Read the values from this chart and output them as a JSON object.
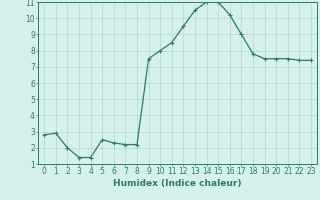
{
  "x": [
    0,
    1,
    2,
    3,
    4,
    5,
    6,
    7,
    8,
    9,
    10,
    11,
    12,
    13,
    14,
    15,
    16,
    17,
    18,
    19,
    20,
    21,
    22,
    23
  ],
  "y": [
    2.8,
    2.9,
    2.0,
    1.4,
    1.4,
    2.5,
    2.3,
    2.2,
    2.2,
    7.5,
    8.0,
    8.5,
    9.5,
    10.5,
    11.0,
    11.0,
    10.2,
    9.0,
    7.8,
    7.5,
    7.5,
    7.5,
    7.4,
    7.4
  ],
  "line_color": "#2d7a6e",
  "marker": "+",
  "bg_color": "#d6f0ee",
  "grid_color": "#b0d8d4",
  "xlabel": "Humidex (Indice chaleur)",
  "xlim": [
    -0.5,
    23.5
  ],
  "ylim": [
    1,
    11
  ],
  "yticks": [
    1,
    2,
    3,
    4,
    5,
    6,
    7,
    8,
    9,
    10,
    11
  ],
  "xticks": [
    0,
    1,
    2,
    3,
    4,
    5,
    6,
    7,
    8,
    9,
    10,
    11,
    12,
    13,
    14,
    15,
    16,
    17,
    18,
    19,
    20,
    21,
    22,
    23
  ],
  "tick_color": "#2d7a6e",
  "label_fontsize": 6.5,
  "tick_fontsize": 5.5,
  "linewidth": 0.9,
  "markersize": 3.0,
  "markeredgewidth": 0.8
}
